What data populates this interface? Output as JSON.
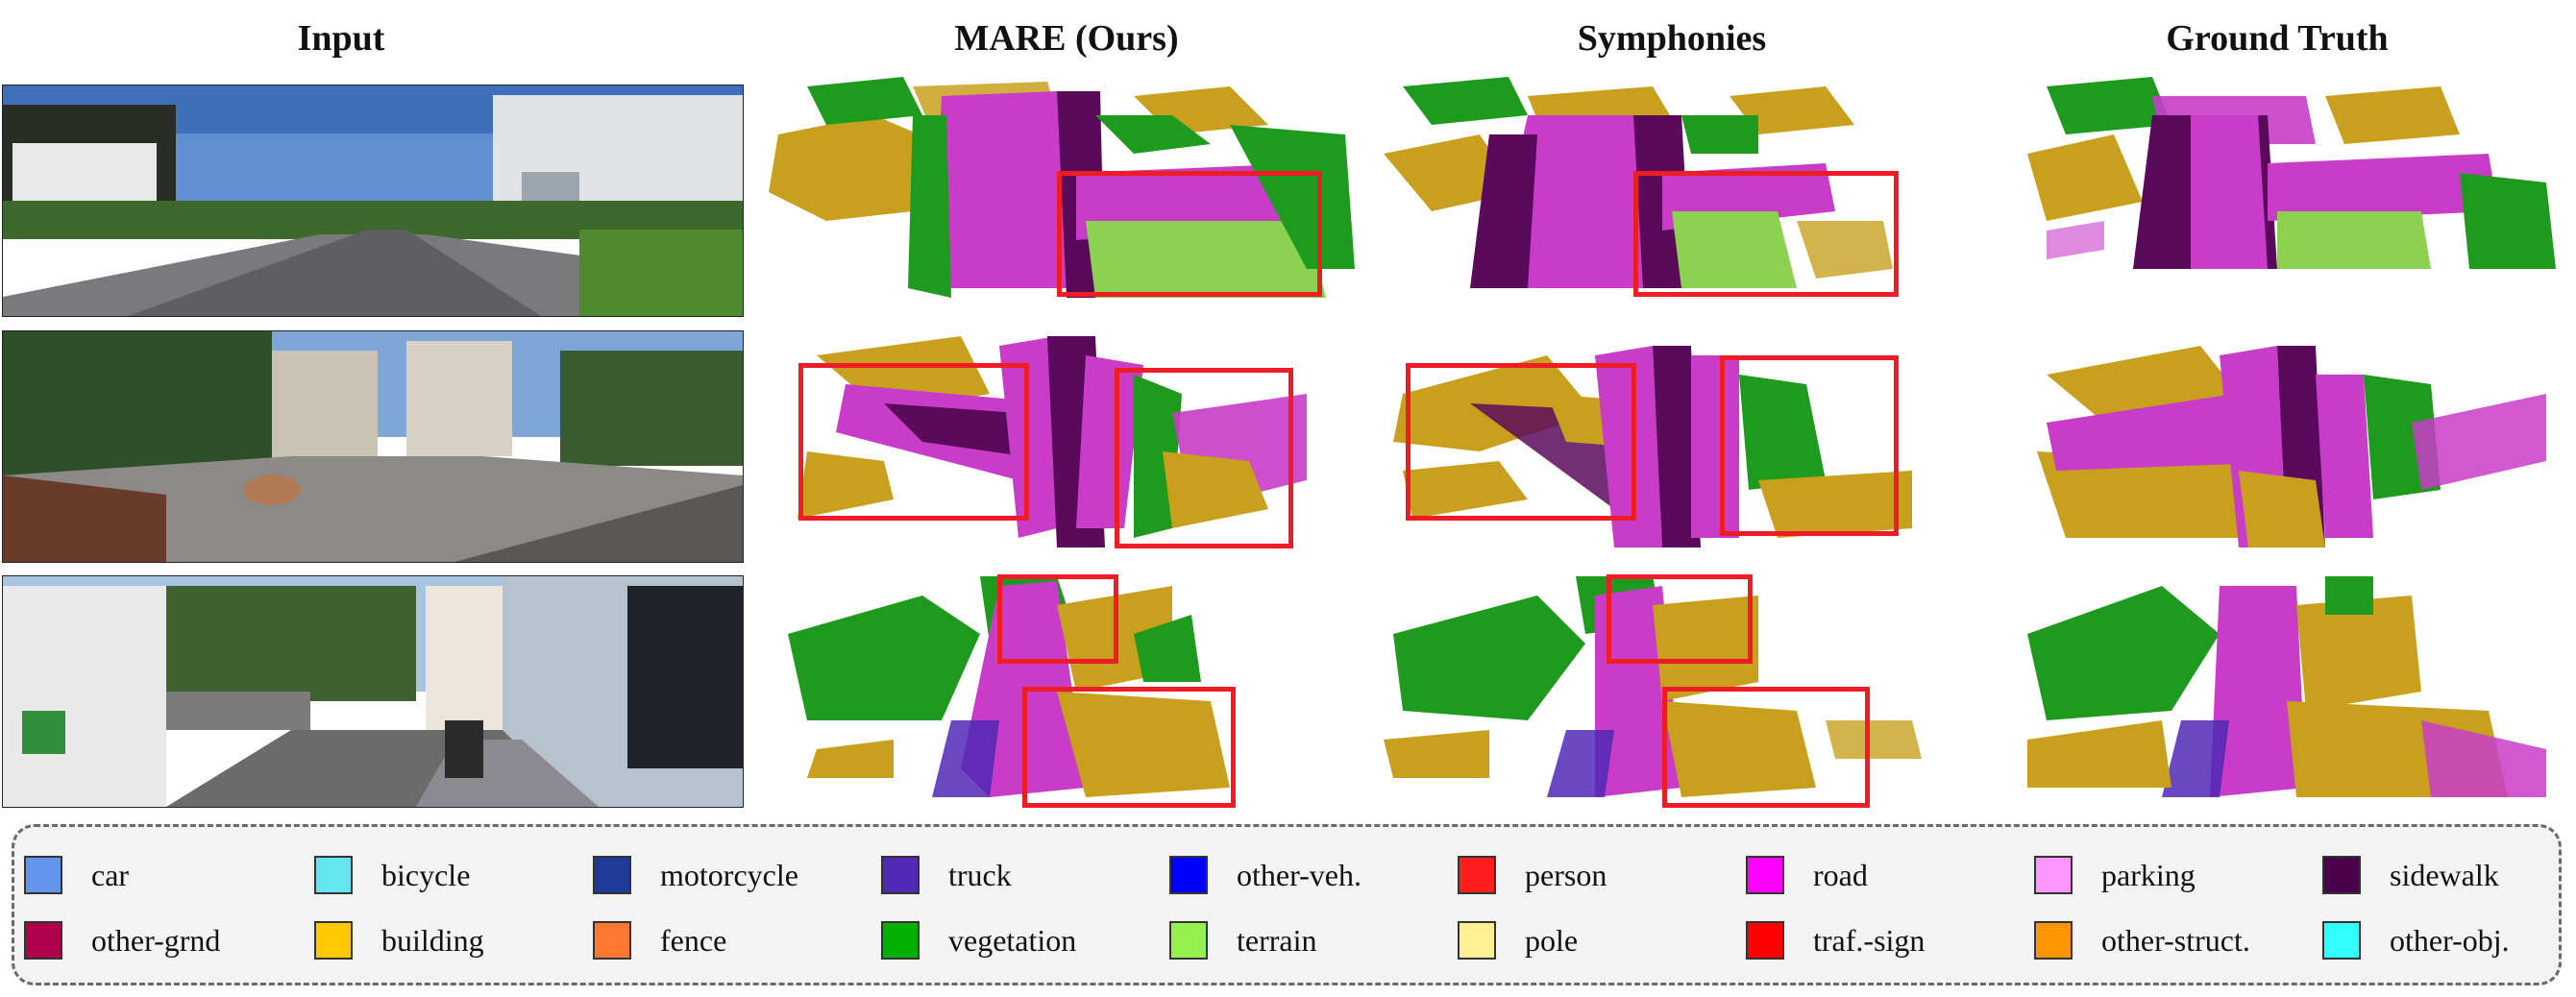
{
  "columns": [
    "Input",
    "MARE (Ours)",
    "Symphonies",
    "Ground Truth"
  ],
  "legend": [
    {
      "label": "car",
      "color": "#6495ed"
    },
    {
      "label": "bicycle",
      "color": "#64e6f0"
    },
    {
      "label": "motorcycle",
      "color": "#1e3c96"
    },
    {
      "label": "truck",
      "color": "#5028b4"
    },
    {
      "label": "other-veh.",
      "color": "#0000ff"
    },
    {
      "label": "person",
      "color": "#ff1e1e"
    },
    {
      "label": "road",
      "color": "#ff00ff"
    },
    {
      "label": "parking",
      "color": "#ff96ff"
    },
    {
      "label": "sidewalk",
      "color": "#4b004b"
    },
    {
      "label": "other-grnd",
      "color": "#af004b"
    },
    {
      "label": "building",
      "color": "#ffc800"
    },
    {
      "label": "fence",
      "color": "#ff7832"
    },
    {
      "label": "vegetation",
      "color": "#00af00"
    },
    {
      "label": "terrain",
      "color": "#96f050"
    },
    {
      "label": "pole",
      "color": "#fff096"
    },
    {
      "label": "traf.-sign",
      "color": "#ff0000"
    },
    {
      "label": "other-struct.",
      "color": "#ff9600"
    },
    {
      "label": "other-obj.",
      "color": "#32ffff"
    }
  ],
  "colors": {
    "road": "#c83cc8",
    "sidewalk": "#5a0a5a",
    "building": "#c8a01e",
    "vegetation": "#1e9a1e",
    "terrain": "#8cd250",
    "highlight": "#ee1c24"
  }
}
